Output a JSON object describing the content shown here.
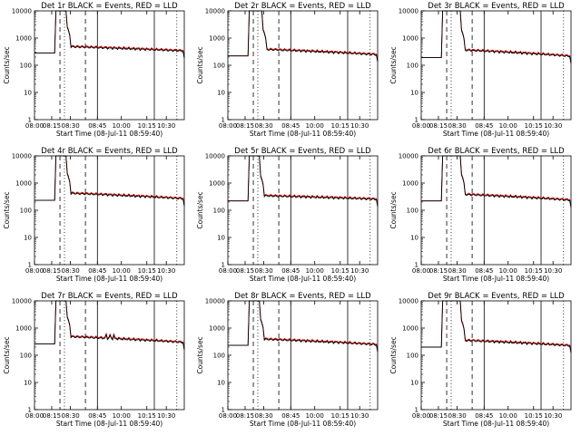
{
  "chart_data": {
    "type": "line",
    "x_tick_labels": [
      "08:00",
      "08:15",
      "08:30",
      "08:45",
      "10:00",
      "10:15",
      "10:30"
    ],
    "y_tick_labels": [
      "1",
      "10",
      "100",
      "1000",
      "10000"
    ],
    "ylim": [
      1,
      10000
    ],
    "yscale": "log",
    "xlabel": "Start Time (08-Jul-11 08:59:40)",
    "ylabel": "Counts/sec",
    "legend_text": "BLACK = Events, RED = LLD",
    "colors": {
      "events": "#000000",
      "lld": "#d40000"
    },
    "panels": [
      {
        "title": "Det 1r BLACK = Events, RED = LLD",
        "pre": 280,
        "post": 480,
        "end": 330,
        "drop_idx": 13,
        "spike": 0
      },
      {
        "title": "Det 2r BLACK = Events, RED = LLD",
        "pre": 220,
        "post": 380,
        "end": 240,
        "drop_idx": 14,
        "spike": 0
      },
      {
        "title": "Det 3r BLACK = Events, RED = LLD",
        "pre": 190,
        "post": 360,
        "end": 210,
        "drop_idx": 16,
        "spike": 0
      },
      {
        "title": "Det 4r BLACK = Events, RED = LLD",
        "pre": 230,
        "post": 420,
        "end": 260,
        "drop_idx": 13,
        "spike": 0
      },
      {
        "title": "Det 5r BLACK = Events, RED = LLD",
        "pre": 220,
        "post": 340,
        "end": 250,
        "drop_idx": 13,
        "spike": 0
      },
      {
        "title": "Det 6r BLACK = Events, RED = LLD",
        "pre": 220,
        "post": 380,
        "end": 230,
        "drop_idx": 16,
        "spike": 0
      },
      {
        "title": "Det 7r BLACK = Events, RED = LLD",
        "pre": 260,
        "post": 480,
        "end": 290,
        "drop_idx": 13,
        "spike": 1
      },
      {
        "title": "Det 8r BLACK = Events, RED = LLD",
        "pre": 230,
        "post": 390,
        "end": 240,
        "drop_idx": 13,
        "spike": 0
      },
      {
        "title": "Det 9r BLACK = Events, RED = LLD",
        "pre": 200,
        "post": 350,
        "end": 220,
        "drop_idx": 16,
        "spike": 0
      }
    ]
  }
}
